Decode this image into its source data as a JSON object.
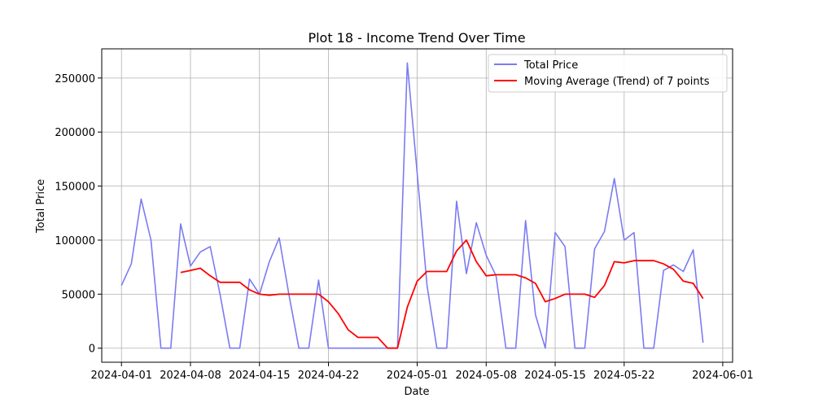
{
  "chart_data": {
    "type": "line",
    "title": "Plot 18 - Income Trend Over Time",
    "xlabel": "Date",
    "ylabel": "Total Price",
    "xlim": [
      "2024-03-30",
      "2024-06-02"
    ],
    "ylim": [
      -13000,
      277000
    ],
    "grid": true,
    "legend_position": "top-right",
    "x_ticks": [
      "2024-04-01",
      "2024-04-08",
      "2024-04-15",
      "2024-04-22",
      "2024-05-01",
      "2024-05-08",
      "2024-05-15",
      "2024-05-22",
      "2024-06-01"
    ],
    "y_ticks": [
      0,
      50000,
      100000,
      150000,
      200000,
      250000
    ],
    "series": [
      {
        "name": "Total Price",
        "color": "#7b7bf2",
        "x": [
          "2024-04-01",
          "2024-04-02",
          "2024-04-03",
          "2024-04-04",
          "2024-04-05",
          "2024-04-06",
          "2024-04-07",
          "2024-04-08",
          "2024-04-09",
          "2024-04-10",
          "2024-04-11",
          "2024-04-12",
          "2024-04-13",
          "2024-04-14",
          "2024-04-15",
          "2024-04-16",
          "2024-04-17",
          "2024-04-18",
          "2024-04-19",
          "2024-04-20",
          "2024-04-21",
          "2024-04-22",
          "2024-04-23",
          "2024-04-24",
          "2024-04-25",
          "2024-04-26",
          "2024-04-27",
          "2024-04-28",
          "2024-04-29",
          "2024-04-30",
          "2024-05-01",
          "2024-05-02",
          "2024-05-03",
          "2024-05-04",
          "2024-05-05",
          "2024-05-06",
          "2024-05-07",
          "2024-05-08",
          "2024-05-09",
          "2024-05-10",
          "2024-05-11",
          "2024-05-12",
          "2024-05-13",
          "2024-05-14",
          "2024-05-15",
          "2024-05-16",
          "2024-05-17",
          "2024-05-18",
          "2024-05-19",
          "2024-05-20",
          "2024-05-21",
          "2024-05-22",
          "2024-05-23",
          "2024-05-24",
          "2024-05-25",
          "2024-05-26",
          "2024-05-27",
          "2024-05-28",
          "2024-05-29",
          "2024-05-30"
        ],
        "values": [
          58000,
          78000,
          138000,
          100000,
          0,
          0,
          115000,
          76000,
          89000,
          94000,
          50000,
          0,
          0,
          64000,
          50000,
          80000,
          102000,
          49000,
          0,
          0,
          63000,
          0,
          0,
          0,
          0,
          0,
          0,
          0,
          0,
          264000,
          162000,
          58000,
          0,
          0,
          136000,
          69000,
          116000,
          86000,
          67000,
          0,
          0,
          118000,
          31000,
          0,
          107000,
          94000,
          0,
          0,
          92000,
          108000,
          157000,
          100000,
          107000,
          0,
          0,
          72000,
          77000,
          71000,
          91000,
          5000
        ]
      },
      {
        "name": "Moving Average (Trend) of 7 points",
        "color": "#ff0000",
        "x": [
          "2024-04-07",
          "2024-04-08",
          "2024-04-09",
          "2024-04-10",
          "2024-04-11",
          "2024-04-12",
          "2024-04-13",
          "2024-04-14",
          "2024-04-15",
          "2024-04-16",
          "2024-04-17",
          "2024-04-18",
          "2024-04-19",
          "2024-04-20",
          "2024-04-21",
          "2024-04-22",
          "2024-04-23",
          "2024-04-24",
          "2024-04-25",
          "2024-04-26",
          "2024-04-27",
          "2024-04-28",
          "2024-04-29",
          "2024-04-30",
          "2024-05-01",
          "2024-05-02",
          "2024-05-03",
          "2024-05-04",
          "2024-05-05",
          "2024-05-06",
          "2024-05-07",
          "2024-05-08",
          "2024-05-09",
          "2024-05-10",
          "2024-05-11",
          "2024-05-12",
          "2024-05-13",
          "2024-05-14",
          "2024-05-15",
          "2024-05-16",
          "2024-05-17",
          "2024-05-18",
          "2024-05-19",
          "2024-05-20",
          "2024-05-21",
          "2024-05-22",
          "2024-05-23",
          "2024-05-24",
          "2024-05-25",
          "2024-05-26",
          "2024-05-27",
          "2024-05-28",
          "2024-05-29",
          "2024-05-30"
        ],
        "values": [
          70000,
          72000,
          74000,
          67000,
          61000,
          61000,
          61000,
          54000,
          50000,
          49000,
          50000,
          50000,
          50000,
          50000,
          50000,
          43000,
          32000,
          17000,
          10000,
          10000,
          10000,
          0,
          0,
          38000,
          62000,
          71000,
          71000,
          71000,
          90000,
          100000,
          80000,
          67000,
          68000,
          68000,
          68000,
          65000,
          60000,
          43000,
          46000,
          50000,
          50000,
          50000,
          47000,
          58000,
          80000,
          79000,
          81000,
          81000,
          81000,
          78000,
          73000,
          62000,
          60000,
          46000
        ]
      }
    ]
  }
}
